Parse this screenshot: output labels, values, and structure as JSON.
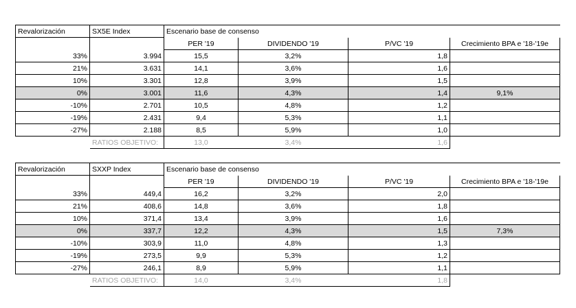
{
  "tables": [
    {
      "header": {
        "col1": "Revalorización",
        "col2": "SX5E Index",
        "scenario": "Escenario base de consenso",
        "per": "PER '19",
        "dividend": "DIVIDENDO '19",
        "pvc": "P/VC '19",
        "growth": "Crecimiento BPA e '18-'19e"
      },
      "rows": [
        {
          "rev": "33%",
          "index": "3.994",
          "per": "15,5",
          "div": "3,2%",
          "pvc": "1,8",
          "growth": ""
        },
        {
          "rev": "21%",
          "index": "3.631",
          "per": "14,1",
          "div": "3,6%",
          "pvc": "1,6",
          "growth": ""
        },
        {
          "rev": "10%",
          "index": "3.301",
          "per": "12,8",
          "div": "3,9%",
          "pvc": "1,5",
          "growth": ""
        },
        {
          "rev": "0%",
          "index": "3.001",
          "per": "11,6",
          "div": "4,3%",
          "pvc": "1,4",
          "growth": "9,1%"
        },
        {
          "rev": "-10%",
          "index": "2.701",
          "per": "10,5",
          "div": "4,8%",
          "pvc": "1,2",
          "growth": ""
        },
        {
          "rev": "-19%",
          "index": "2.431",
          "per": "9,4",
          "div": "5,3%",
          "pvc": "1,1",
          "growth": ""
        },
        {
          "rev": "-27%",
          "index": "2.188",
          "per": "8,5",
          "div": "5,9%",
          "pvc": "1,0",
          "growth": ""
        }
      ],
      "ratios": {
        "label": "RATIOS OBJETIVO:",
        "per": "13,0",
        "div": "3,4%",
        "pvc": "1,6"
      }
    },
    {
      "header": {
        "col1": "Revalorización",
        "col2": "SXXP Index",
        "scenario": "Escenario base de consenso",
        "per": "PER '19",
        "dividend": "DIVIDENDO '19",
        "pvc": "P/VC '19",
        "growth": "Crecimiento BPA e '18-'19e"
      },
      "rows": [
        {
          "rev": "33%",
          "index": "449,4",
          "per": "16,2",
          "div": "3,2%",
          "pvc": "2,0",
          "growth": ""
        },
        {
          "rev": "21%",
          "index": "408,6",
          "per": "14,8",
          "div": "3,6%",
          "pvc": "1,8",
          "growth": ""
        },
        {
          "rev": "10%",
          "index": "371,4",
          "per": "13,4",
          "div": "3,9%",
          "pvc": "1,6",
          "growth": ""
        },
        {
          "rev": "0%",
          "index": "337,7",
          "per": "12,2",
          "div": "4,3%",
          "pvc": "1,5",
          "growth": "7,3%"
        },
        {
          "rev": "-10%",
          "index": "303,9",
          "per": "11,0",
          "div": "4,8%",
          "pvc": "1,3",
          "growth": ""
        },
        {
          "rev": "-19%",
          "index": "273,5",
          "per": "9,9",
          "div": "5,3%",
          "pvc": "1,2",
          "growth": ""
        },
        {
          "rev": "-27%",
          "index": "246,1",
          "per": "8,9",
          "div": "5,9%",
          "pvc": "1,1",
          "growth": ""
        }
      ],
      "ratios": {
        "label": "RATIOS OBJETIVO:",
        "per": "14,0",
        "div": "3,4%",
        "pvc": "1,8"
      }
    }
  ]
}
